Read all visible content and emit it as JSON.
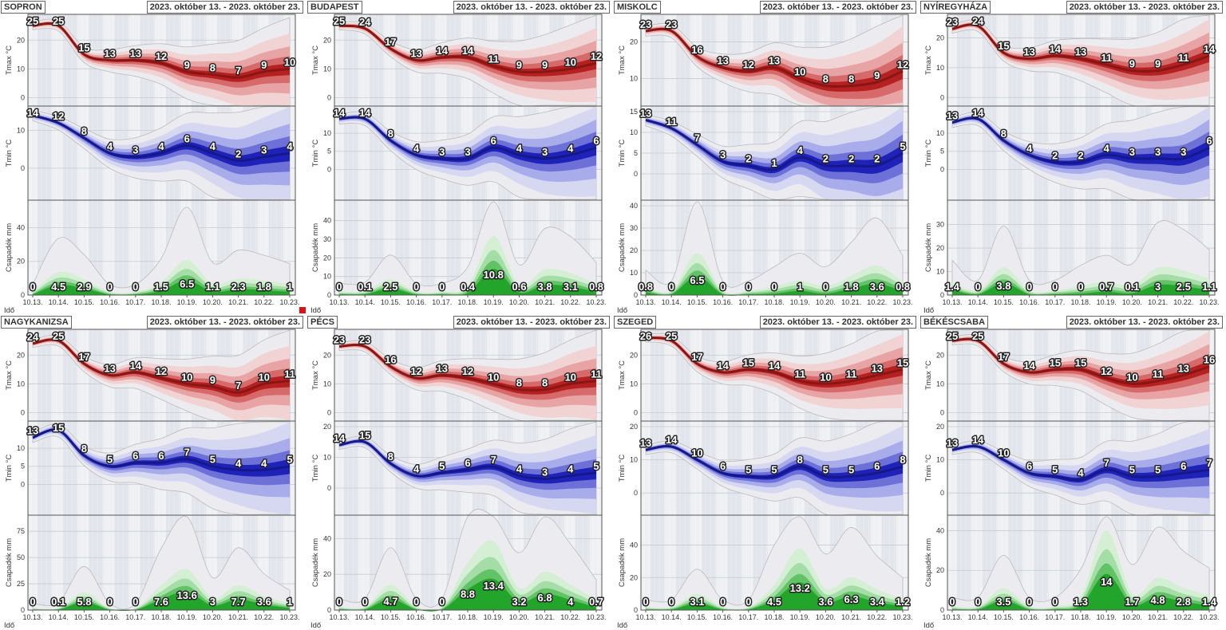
{
  "colors": {
    "tmax": "#b52020",
    "tmin": "#1e22b8",
    "precip": "#22a52a"
  },
  "labels": {
    "tmax_axis": "Tmax °C",
    "tmin_axis": "Tmin °C",
    "precip_axis": "Csapadék mm",
    "x_axis": "Idő"
  },
  "chart_data": {
    "type": "area",
    "x": [
      "10.13.",
      "10.14.",
      "10.15.",
      "10.16.",
      "10.17.",
      "10.18.",
      "10.19.",
      "10.20.",
      "10.21.",
      "10.22.",
      "10.23."
    ],
    "panels": [
      {
        "title": "SOPRON",
        "date_range": "2023. október 13. - 2023. október 23.",
        "tmax": [
          25,
          25,
          15,
          13,
          13,
          12,
          9,
          8,
          7,
          9,
          10
        ],
        "tmax_ylim": [
          -1,
          27
        ],
        "tmax_ticks": [
          0,
          10,
          20
        ],
        "tmin": [
          14,
          12,
          8,
          4,
          3,
          4,
          6,
          4,
          2,
          3,
          4
        ],
        "tmin_ylim": [
          -7,
          15
        ],
        "tmin_ticks": [
          0,
          10
        ],
        "precip": [
          0,
          4.5,
          2.9,
          0,
          0,
          1.5,
          6.5,
          1.1,
          2.3,
          1.8,
          1
        ],
        "precip_ylim": [
          0,
          53
        ],
        "precip_ticks": [
          0,
          20,
          40
        ]
      },
      {
        "title": "BUDAPEST",
        "date_range": "2023. október 13. - 2023. október 23.",
        "tmax": [
          25,
          24,
          17,
          13,
          14,
          14,
          11,
          9,
          9,
          10,
          12
        ],
        "tmax_ylim": [
          -1,
          27
        ],
        "tmax_ticks": [
          0,
          10,
          20
        ],
        "tmin": [
          14,
          14,
          8,
          4,
          3,
          3,
          6,
          4,
          3,
          4,
          6
        ],
        "tmin_ylim": [
          -7,
          16
        ],
        "tmin_ticks": [
          0,
          5,
          10
        ],
        "precip": [
          0,
          0.1,
          2.5,
          0,
          0,
          0.4,
          10.8,
          0.6,
          3.8,
          3.1,
          0.8
        ],
        "precip_ylim": [
          0,
          48
        ],
        "precip_ticks": [
          0,
          10,
          20,
          30,
          40
        ]
      },
      {
        "title": "MISKOLC",
        "date_range": "2023. október 13. - 2023. október 23.",
        "tmax": [
          23,
          23,
          16,
          13,
          12,
          13,
          10,
          8,
          8,
          9,
          12
        ],
        "tmax_ylim": [
          4,
          26
        ],
        "tmax_ticks": [
          10,
          20
        ],
        "tmin": [
          13,
          11,
          7,
          3,
          2,
          1,
          4,
          2,
          2,
          2,
          5
        ],
        "tmin_ylim": [
          -5,
          15
        ],
        "tmin_ticks": [
          0,
          5,
          10,
          15
        ],
        "precip": [
          0.8,
          0,
          6.5,
          0,
          0,
          0,
          1,
          0,
          1.8,
          3.6,
          0.8
        ],
        "precip_ylim": [
          0,
          40
        ],
        "precip_ticks": [
          0,
          10,
          20,
          30,
          40
        ]
      },
      {
        "title": "NYÍREGYHÁZA",
        "date_range": "2023. október 13. - 2023. október 23.",
        "tmax": [
          23,
          24,
          15,
          13,
          14,
          13,
          11,
          9,
          9,
          11,
          14
        ],
        "tmax_ylim": [
          -1,
          26
        ],
        "tmax_ticks": [
          0,
          10,
          20
        ],
        "tmin": [
          13,
          14,
          8,
          4,
          2,
          2,
          4,
          3,
          3,
          3,
          6
        ],
        "tmin_ylim": [
          -7,
          16
        ],
        "tmin_ticks": [
          0,
          5,
          10
        ],
        "precip": [
          1.4,
          0,
          3.8,
          0,
          0,
          0,
          0.7,
          0.1,
          3,
          2.5,
          1.1
        ],
        "precip_ylim": [
          0,
          38
        ],
        "precip_ticks": [
          0,
          10,
          20,
          30
        ]
      },
      {
        "title": "NAGYKANIZSA",
        "date_range": "2023. október 13. - 2023. október 23.",
        "tmax": [
          24,
          25,
          17,
          13,
          14,
          12,
          10,
          9,
          7,
          10,
          11
        ],
        "tmax_ylim": [
          -1,
          27
        ],
        "tmax_ticks": [
          0,
          10,
          20
        ],
        "tmin": [
          13,
          15,
          8,
          5,
          6,
          6,
          7,
          5,
          4,
          4,
          5
        ],
        "tmin_ylim": [
          -7,
          16
        ],
        "tmin_ticks": [
          0,
          5,
          10
        ],
        "precip": [
          0,
          0.1,
          5.8,
          0,
          0,
          7.6,
          13.6,
          3,
          7.7,
          3.6,
          1
        ],
        "precip_ylim": [
          0,
          85
        ],
        "precip_ticks": [
          0,
          25,
          50,
          75
        ]
      },
      {
        "title": "PÉCS",
        "date_range": "2023. október 13. - 2023. október 23.",
        "tmax": [
          23,
          23,
          16,
          12,
          13,
          12,
          10,
          8,
          8,
          10,
          11
        ],
        "tmax_ylim": [
          -1,
          27
        ],
        "tmax_ticks": [
          0,
          10,
          20
        ],
        "tmin": [
          14,
          15,
          8,
          4,
          5,
          6,
          7,
          4,
          3,
          4,
          5
        ],
        "tmin_ylim": [
          -7,
          20
        ],
        "tmin_ticks": [
          0,
          10,
          20
        ],
        "precip": [
          0,
          0,
          4.7,
          0,
          0,
          8.8,
          13.4,
          3.2,
          6.8,
          4,
          0.7
        ],
        "precip_ylim": [
          0,
          50
        ],
        "precip_ticks": [
          0,
          20,
          40
        ]
      },
      {
        "title": "SZEGED",
        "date_range": "2023. október 13. - 2023. október 23.",
        "tmax": [
          26,
          25,
          17,
          14,
          15,
          14,
          11,
          10,
          11,
          13,
          15
        ],
        "tmax_ylim": [
          -1,
          27
        ],
        "tmax_ticks": [
          0,
          10,
          20
        ],
        "tmin": [
          13,
          14,
          10,
          6,
          5,
          5,
          8,
          5,
          5,
          6,
          8
        ],
        "tmin_ylim": [
          -5,
          20
        ],
        "tmin_ticks": [
          0,
          10,
          20
        ],
        "precip": [
          0,
          0,
          3.1,
          0,
          0,
          4.5,
          13.2,
          3.6,
          6.3,
          3.4,
          1.2
        ],
        "precip_ylim": [
          0,
          55
        ],
        "precip_ticks": [
          0,
          20,
          40
        ]
      },
      {
        "title": "BÉKÉSCSABA",
        "date_range": "2023. október 13. - 2023. október 23.",
        "tmax": [
          25,
          25,
          17,
          14,
          15,
          15,
          12,
          10,
          11,
          13,
          16
        ],
        "tmax_ylim": [
          -1,
          27
        ],
        "tmax_ticks": [
          0,
          10,
          20
        ],
        "tmin": [
          13,
          14,
          10,
          6,
          5,
          4,
          7,
          5,
          5,
          6,
          7
        ],
        "tmin_ylim": [
          -5,
          20
        ],
        "tmin_ticks": [
          0,
          10,
          20
        ],
        "precip": [
          0,
          0,
          3.5,
          0,
          0,
          1.3,
          14,
          1.7,
          4.8,
          2.8,
          1.4
        ],
        "precip_ylim": [
          0,
          45
        ],
        "precip_ticks": [
          0,
          20,
          40
        ]
      }
    ]
  }
}
